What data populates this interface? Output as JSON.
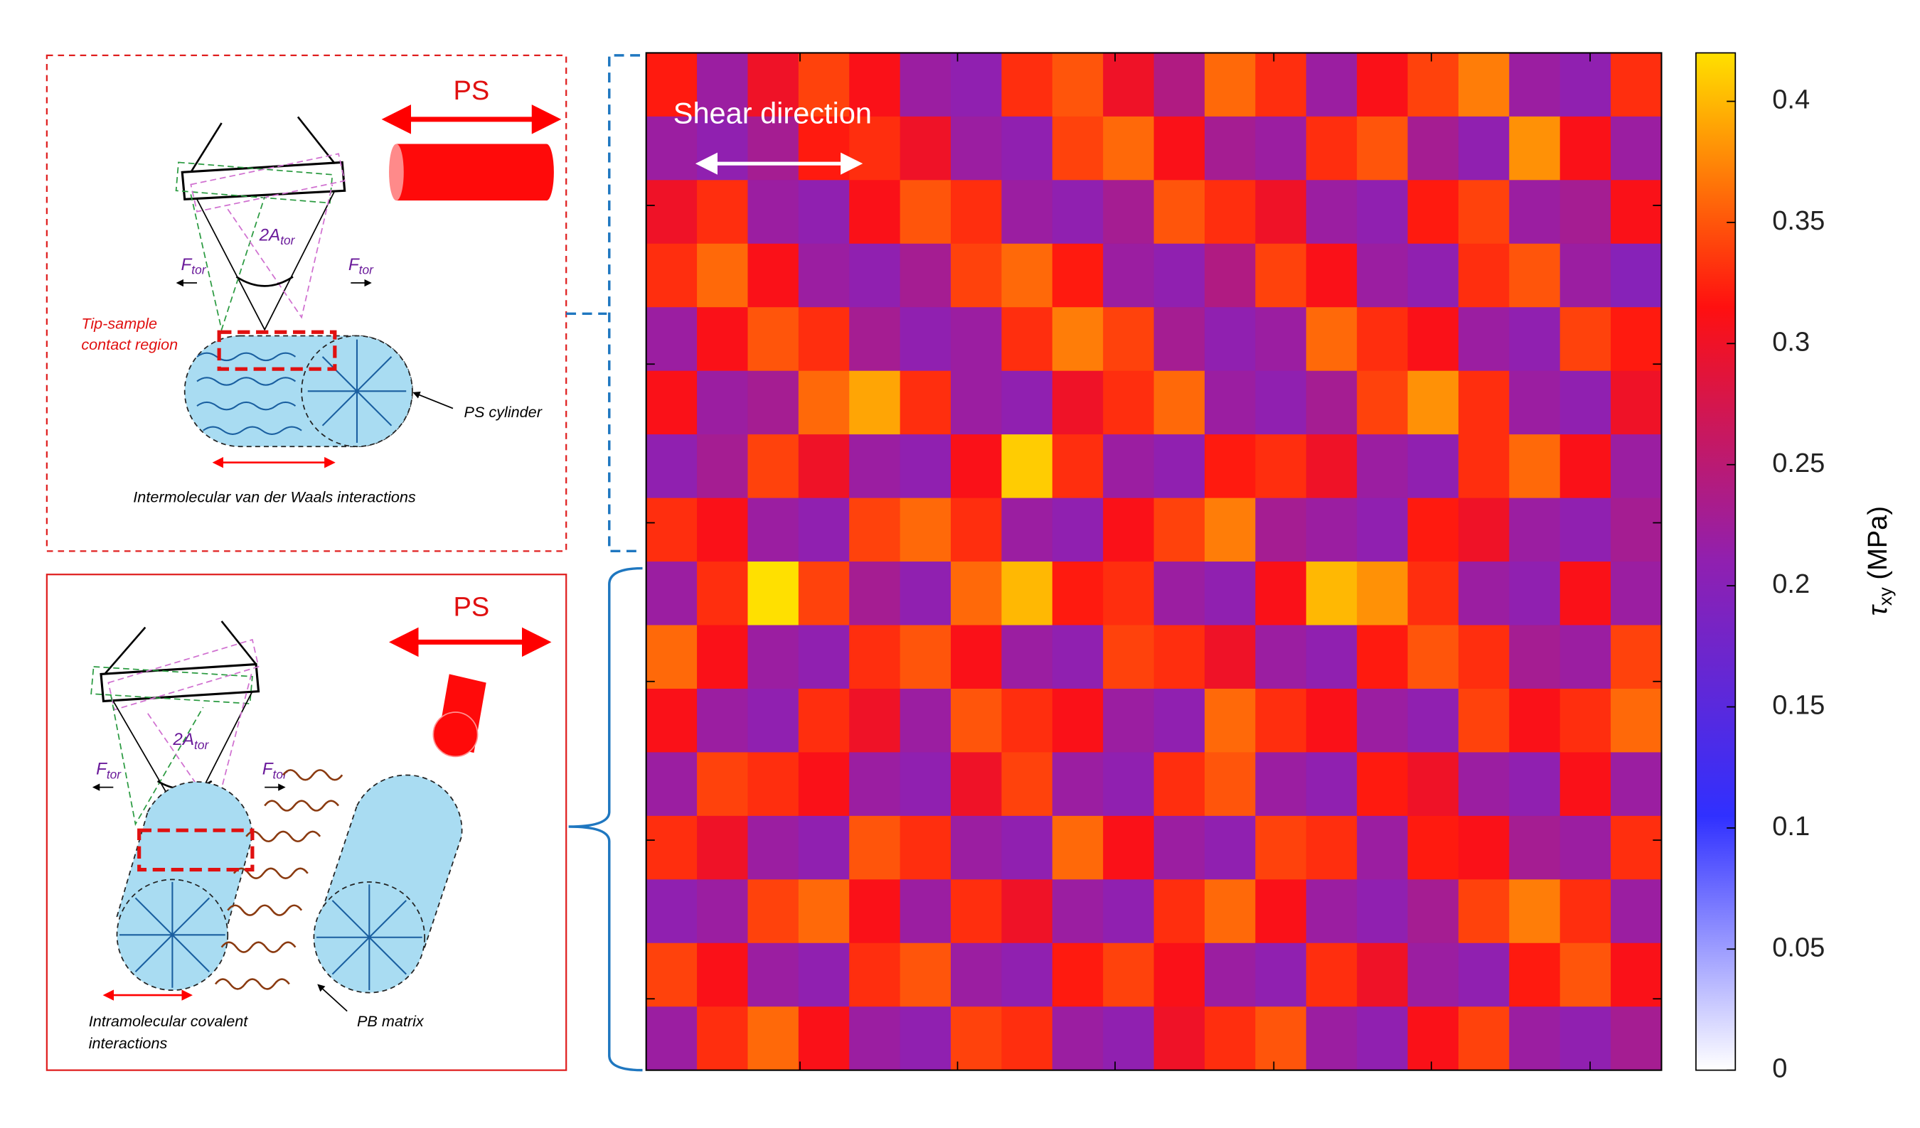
{
  "chart_data": {
    "type": "heatmap",
    "annotation": "Shear direction",
    "colorbar_label": {
      "symbol": "τ",
      "subscript": "xy",
      "unit": "(MPa)"
    },
    "clim": [
      0,
      0.42
    ],
    "cticks": [
      0,
      0.05,
      0.1,
      0.15,
      0.2,
      0.25,
      0.3,
      0.35,
      0.4
    ],
    "colormap": [
      "#ffffff",
      "#3030ff",
      "#9020b0",
      "#ff1010",
      "#ffe000"
    ],
    "values": [
      [
        0.32,
        0.22,
        0.3,
        0.34,
        0.31,
        0.22,
        0.21,
        0.33,
        0.35,
        0.3,
        0.24,
        0.36,
        0.33,
        0.22,
        0.31,
        0.34,
        0.37,
        0.22,
        0.21,
        0.33
      ],
      [
        0.22,
        0.21,
        0.23,
        0.32,
        0.33,
        0.3,
        0.22,
        0.21,
        0.34,
        0.36,
        0.31,
        0.23,
        0.22,
        0.33,
        0.35,
        0.23,
        0.21,
        0.38,
        0.31,
        0.22
      ],
      [
        0.3,
        0.33,
        0.22,
        0.21,
        0.31,
        0.35,
        0.33,
        0.22,
        0.21,
        0.23,
        0.35,
        0.33,
        0.3,
        0.22,
        0.21,
        0.32,
        0.34,
        0.22,
        0.23,
        0.31
      ],
      [
        0.33,
        0.36,
        0.31,
        0.22,
        0.21,
        0.23,
        0.34,
        0.36,
        0.32,
        0.22,
        0.21,
        0.24,
        0.34,
        0.31,
        0.22,
        0.21,
        0.33,
        0.35,
        0.22,
        0.2
      ],
      [
        0.22,
        0.31,
        0.35,
        0.33,
        0.23,
        0.21,
        0.22,
        0.33,
        0.37,
        0.34,
        0.23,
        0.21,
        0.22,
        0.36,
        0.33,
        0.31,
        0.22,
        0.21,
        0.34,
        0.32
      ],
      [
        0.31,
        0.22,
        0.23,
        0.36,
        0.39,
        0.33,
        0.22,
        0.21,
        0.3,
        0.33,
        0.36,
        0.22,
        0.21,
        0.23,
        0.34,
        0.38,
        0.33,
        0.22,
        0.21,
        0.3
      ],
      [
        0.21,
        0.23,
        0.34,
        0.3,
        0.22,
        0.21,
        0.31,
        0.41,
        0.33,
        0.22,
        0.21,
        0.32,
        0.33,
        0.3,
        0.22,
        0.21,
        0.33,
        0.36,
        0.31,
        0.22
      ],
      [
        0.33,
        0.31,
        0.22,
        0.21,
        0.34,
        0.36,
        0.33,
        0.22,
        0.21,
        0.31,
        0.34,
        0.37,
        0.23,
        0.22,
        0.21,
        0.32,
        0.3,
        0.22,
        0.21,
        0.23
      ],
      [
        0.22,
        0.33,
        0.42,
        0.34,
        0.23,
        0.21,
        0.36,
        0.4,
        0.32,
        0.33,
        0.22,
        0.21,
        0.31,
        0.4,
        0.38,
        0.33,
        0.22,
        0.21,
        0.31,
        0.22
      ],
      [
        0.36,
        0.31,
        0.22,
        0.21,
        0.33,
        0.35,
        0.31,
        0.22,
        0.21,
        0.34,
        0.33,
        0.3,
        0.22,
        0.21,
        0.32,
        0.35,
        0.33,
        0.23,
        0.22,
        0.34
      ],
      [
        0.31,
        0.22,
        0.21,
        0.33,
        0.3,
        0.22,
        0.35,
        0.33,
        0.31,
        0.22,
        0.21,
        0.36,
        0.33,
        0.31,
        0.22,
        0.21,
        0.34,
        0.31,
        0.33,
        0.36
      ],
      [
        0.22,
        0.34,
        0.33,
        0.31,
        0.22,
        0.21,
        0.3,
        0.34,
        0.22,
        0.21,
        0.33,
        0.35,
        0.22,
        0.21,
        0.32,
        0.3,
        0.22,
        0.21,
        0.31,
        0.22
      ],
      [
        0.33,
        0.3,
        0.22,
        0.21,
        0.35,
        0.33,
        0.22,
        0.21,
        0.36,
        0.31,
        0.22,
        0.21,
        0.34,
        0.33,
        0.22,
        0.32,
        0.31,
        0.23,
        0.22,
        0.33
      ],
      [
        0.21,
        0.22,
        0.34,
        0.36,
        0.31,
        0.22,
        0.33,
        0.3,
        0.22,
        0.21,
        0.33,
        0.36,
        0.31,
        0.22,
        0.21,
        0.23,
        0.34,
        0.37,
        0.33,
        0.22
      ],
      [
        0.34,
        0.31,
        0.22,
        0.21,
        0.33,
        0.35,
        0.22,
        0.21,
        0.32,
        0.34,
        0.31,
        0.22,
        0.21,
        0.33,
        0.3,
        0.22,
        0.21,
        0.32,
        0.35,
        0.31
      ],
      [
        0.22,
        0.33,
        0.36,
        0.31,
        0.22,
        0.21,
        0.34,
        0.33,
        0.22,
        0.21,
        0.3,
        0.33,
        0.35,
        0.22,
        0.21,
        0.31,
        0.34,
        0.22,
        0.21,
        0.23
      ]
    ]
  },
  "panels": [
    {
      "direction": "PS",
      "force": {
        "base": "F",
        "sub": "tor"
      },
      "angle": {
        "base": "2A",
        "sub": "tor"
      },
      "contact": [
        "Tip-sample",
        "contact region"
      ],
      "cylinder": "PS cylinder",
      "caption": [
        "Intermolecular van der Waals interactions"
      ]
    },
    {
      "direction": "PS",
      "force": {
        "base": "F",
        "sub": "tor"
      },
      "angle": {
        "base": "2A",
        "sub": "tor"
      },
      "matrix": "PB matrix",
      "caption": [
        "Intramolecular covalent",
        "interactions"
      ]
    }
  ]
}
